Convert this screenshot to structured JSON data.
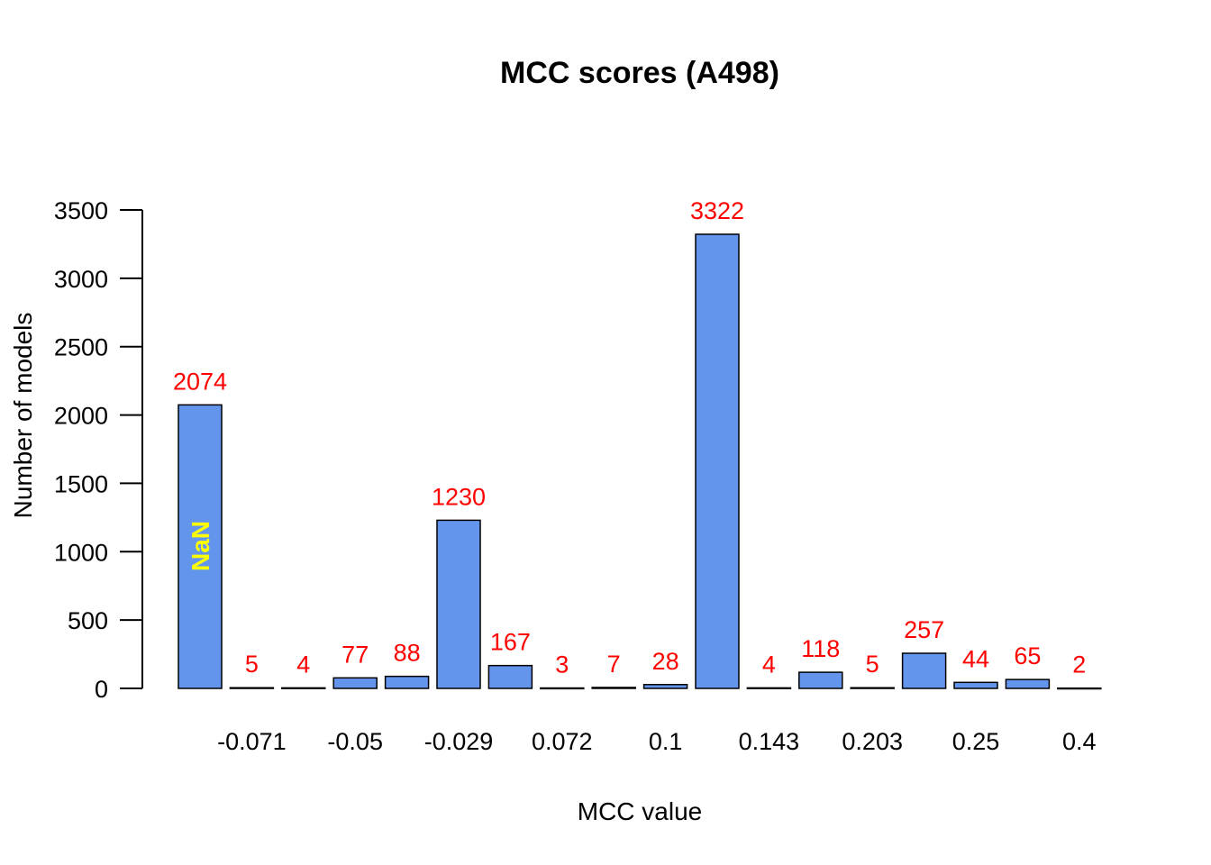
{
  "chart_data": {
    "type": "bar",
    "title": "MCC scores (A498)",
    "xlabel": "MCC value",
    "ylabel": "Number of models",
    "ylim": [
      0,
      3500
    ],
    "yticks": [
      0,
      500,
      1000,
      1500,
      2000,
      2500,
      3000,
      3500
    ],
    "grid": false,
    "legend": "none",
    "bar_color": "#6495ED",
    "label_color": "#FF0000",
    "nan_label_color": "#FFFF00",
    "categories": [
      "NaN",
      "-0.071",
      "",
      "-0.05",
      "",
      "-0.029",
      "",
      "0.072",
      "",
      "0.1",
      "",
      "0.143",
      "",
      "0.203",
      "",
      "0.25",
      "",
      "0.4"
    ],
    "values": [
      2074,
      5,
      4,
      77,
      88,
      1230,
      167,
      3,
      7,
      28,
      3322,
      4,
      118,
      5,
      257,
      44,
      65,
      2
    ],
    "x_tick_labels": [
      "-0.071",
      "-0.05",
      "-0.029",
      "0.072",
      "0.1",
      "0.143",
      "0.203",
      "0.25",
      "0.4"
    ],
    "nan_label": "NaN"
  }
}
